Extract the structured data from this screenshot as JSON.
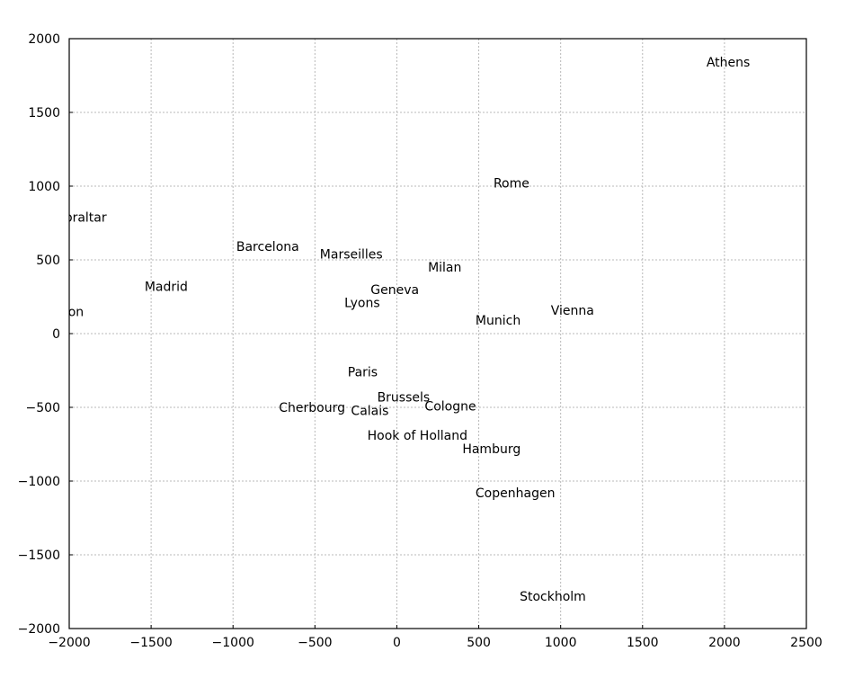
{
  "chart_data": {
    "type": "scatter",
    "title": "",
    "xlabel": "",
    "ylabel": "",
    "xlim": [
      -2000,
      2500
    ],
    "ylim": [
      -2000,
      2000
    ],
    "xticks": [
      -2000,
      -1500,
      -1000,
      -500,
      0,
      500,
      1000,
      1500,
      2000,
      2500
    ],
    "yticks": [
      -2000,
      -1500,
      -1000,
      -500,
      0,
      500,
      1000,
      1500,
      2000
    ],
    "grid": true,
    "marker": "none",
    "points": [
      {
        "label": "Athens",
        "x": 1890,
        "y": 1840
      },
      {
        "label": "Rome",
        "x": 590,
        "y": 1020
      },
      {
        "label": "Gibraltar",
        "x": -2110,
        "y": 790
      },
      {
        "label": "Barcelona",
        "x": -980,
        "y": 590
      },
      {
        "label": "Marseilles",
        "x": -470,
        "y": 540
      },
      {
        "label": "Milan",
        "x": 190,
        "y": 450
      },
      {
        "label": "Madrid",
        "x": -1540,
        "y": 320
      },
      {
        "label": "Geneva",
        "x": -160,
        "y": 300
      },
      {
        "label": "Lyons",
        "x": -320,
        "y": 210
      },
      {
        "label": "Lisbon",
        "x": -2160,
        "y": 150
      },
      {
        "label": "Vienna",
        "x": 940,
        "y": 160
      },
      {
        "label": "Munich",
        "x": 480,
        "y": 90
      },
      {
        "label": "Paris",
        "x": -300,
        "y": -260
      },
      {
        "label": "Brussels",
        "x": -120,
        "y": -430
      },
      {
        "label": "Cherbourg",
        "x": -720,
        "y": -500
      },
      {
        "label": "Calais",
        "x": -280,
        "y": -520
      },
      {
        "label": "Cologne",
        "x": 170,
        "y": -490
      },
      {
        "label": "Hook of Holland",
        "x": -180,
        "y": -690
      },
      {
        "label": "Hamburg",
        "x": 400,
        "y": -780
      },
      {
        "label": "Copenhagen",
        "x": 480,
        "y": -1080
      },
      {
        "label": "Stockholm",
        "x": 750,
        "y": -1780
      }
    ]
  }
}
